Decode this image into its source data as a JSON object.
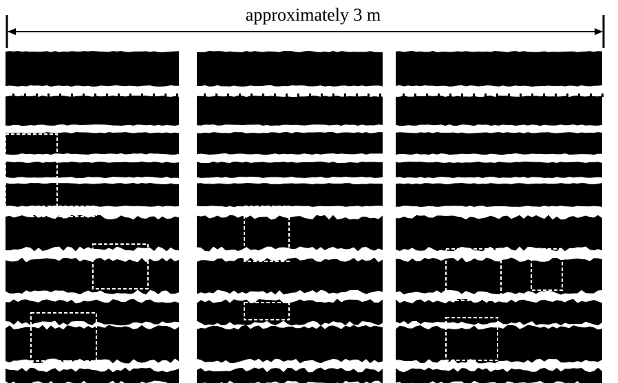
{
  "caption": "approximately 3 m"
}
